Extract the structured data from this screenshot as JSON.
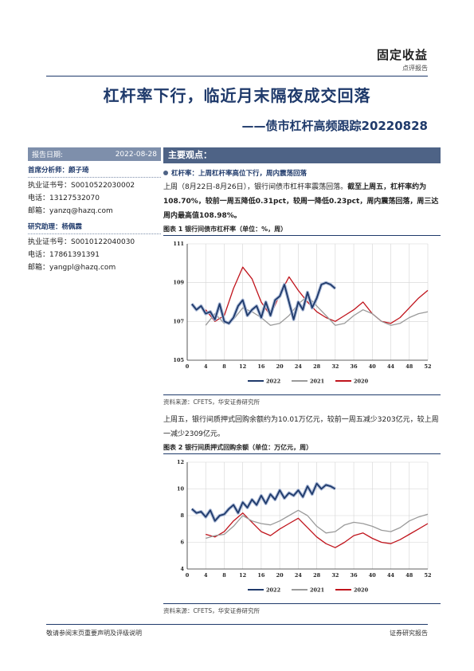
{
  "header": {
    "title": "固定收益",
    "subtitle": "点评报告"
  },
  "title": "杠杆率下行，临近月末隔夜成交回落",
  "subtitle": "——债市杠杆高频跟踪20220828",
  "sidebar": {
    "date_label": "报告日期:",
    "date_value": "2022-08-28",
    "analyst_role": "首席分析师：颜子琦",
    "analyst_cert": "执业证书号：S0010522030002",
    "analyst_phone": "电话：13127532070",
    "analyst_email": "邮箱：yanzq@hazq.com",
    "assistant_role": "研究助理：杨佩霖",
    "assistant_cert": "执业证书号：S0010122040030",
    "assistant_phone": "电话：17861391391",
    "assistant_email": "邮箱：yangpl@hazq.com"
  },
  "main": {
    "views_heading": "主要观点：",
    "bullet1": "杠杆率：上周杠杆率高位下行，周内震荡回落",
    "para1_plain": "上周（8月22日-8月26日），银行间债市杠杆率震荡回落。",
    "para1_bold": "截至上周五，杠杆率约为108.70%，较前一周五降低0.31pct，较周一降低0.23pct，周内震荡回落，周三达周内最高值108.98%。",
    "fig1_title": "图表 1  银行间债市杠杆率（单位：%，周）",
    "fig1_source": "资料来源：CFETS，华安证券研究所",
    "para2": "上周五，银行间质押式回购余额约为10.01万亿元，较前一周五减少3203亿元，较上周一减少2309亿元。",
    "fig2_title": "图表 2  银行间质押式回购余额（单位：万亿元，周）",
    "fig2_source": "资料来源：CFETS，华安证券研究所"
  },
  "footer": {
    "left": "敬请参阅末页重要声明及评级说明",
    "right": "证券研究报告"
  },
  "chart_data": [
    {
      "type": "line",
      "title": "",
      "xlabel": "",
      "ylabel": "",
      "xlim": [
        0,
        52
      ],
      "ylim": [
        105,
        111
      ],
      "xticks": [
        0,
        4,
        8,
        12,
        16,
        20,
        24,
        28,
        32,
        36,
        40,
        44,
        48,
        52
      ],
      "yticks": [
        105,
        107,
        109,
        111
      ],
      "grid": true,
      "legend": "bottom",
      "series": [
        {
          "name": "2022",
          "color": "#1f3a6b",
          "x": [
            1,
            2,
            3,
            4,
            5,
            6,
            7,
            8,
            9,
            10,
            11,
            12,
            13,
            14,
            15,
            16,
            17,
            18,
            19,
            20,
            21,
            22,
            23,
            24,
            25,
            26,
            27,
            28,
            29,
            30,
            31,
            32
          ],
          "y": [
            107.9,
            107.6,
            107.8,
            107.4,
            107.5,
            107.1,
            107.9,
            107.0,
            106.9,
            107.2,
            107.8,
            108.1,
            107.3,
            107.6,
            107.8,
            107.2,
            108.0,
            107.3,
            108.1,
            108.3,
            108.9,
            108.0,
            107.1,
            108.0,
            107.6,
            108.5,
            107.7,
            108.2,
            108.9,
            109.0,
            108.9,
            108.7
          ]
        },
        {
          "name": "2021",
          "color": "#9a9a9a",
          "x": [
            4,
            6,
            8,
            10,
            12,
            14,
            16,
            18,
            20,
            22,
            24,
            26,
            28,
            30,
            32,
            34,
            36,
            38,
            40,
            42,
            44,
            46,
            48,
            50,
            52
          ],
          "y": [
            106.8,
            107.4,
            106.9,
            107.1,
            107.7,
            107.5,
            107.2,
            106.8,
            106.9,
            107.3,
            107.9,
            108.3,
            107.8,
            107.3,
            106.8,
            106.9,
            107.3,
            107.6,
            107.4,
            107.0,
            106.8,
            106.9,
            107.2,
            107.4,
            107.5
          ]
        },
        {
          "name": "2020",
          "color": "#c0141c",
          "x": [
            4,
            6,
            8,
            10,
            12,
            14,
            16,
            18,
            20,
            22,
            24,
            26,
            28,
            30,
            32,
            34,
            36,
            38,
            40,
            42,
            44,
            46,
            48,
            50,
            52
          ],
          "y": [
            107.6,
            107.0,
            107.3,
            108.7,
            109.8,
            109.2,
            108.0,
            107.3,
            108.4,
            109.3,
            108.6,
            108.0,
            107.5,
            107.2,
            107.0,
            107.3,
            107.6,
            108.0,
            107.4,
            107.0,
            106.9,
            107.2,
            107.7,
            108.2,
            108.6
          ]
        }
      ]
    },
    {
      "type": "line",
      "title": "",
      "xlabel": "",
      "ylabel": "",
      "xlim": [
        0,
        52
      ],
      "ylim": [
        4,
        12
      ],
      "xticks": [
        0,
        4,
        8,
        12,
        16,
        20,
        24,
        28,
        32,
        36,
        40,
        44,
        48,
        52
      ],
      "yticks": [
        4,
        6,
        8,
        10,
        12
      ],
      "grid": true,
      "legend": "bottom",
      "series": [
        {
          "name": "2022",
          "color": "#1f3a6b",
          "x": [
            1,
            2,
            3,
            4,
            5,
            6,
            7,
            8,
            9,
            10,
            11,
            12,
            13,
            14,
            15,
            16,
            17,
            18,
            19,
            20,
            21,
            22,
            23,
            24,
            25,
            26,
            27,
            28,
            29,
            30,
            31,
            32
          ],
          "y": [
            8.5,
            8.2,
            8.3,
            7.9,
            8.4,
            7.6,
            8.0,
            8.1,
            8.5,
            8.8,
            8.2,
            9.0,
            8.6,
            9.2,
            8.8,
            9.5,
            8.9,
            9.6,
            9.2,
            9.9,
            9.3,
            9.7,
            9.5,
            9.9,
            9.4,
            10.2,
            9.6,
            10.4,
            10.0,
            10.3,
            10.2,
            10.0
          ]
        },
        {
          "name": "2021",
          "color": "#9a9a9a",
          "x": [
            4,
            6,
            8,
            10,
            12,
            14,
            16,
            18,
            20,
            22,
            24,
            26,
            28,
            30,
            32,
            34,
            36,
            38,
            40,
            42,
            44,
            46,
            48,
            50,
            52
          ],
          "y": [
            6.3,
            6.5,
            6.6,
            7.2,
            8.0,
            7.6,
            7.4,
            7.3,
            7.6,
            8.0,
            8.4,
            8.0,
            7.2,
            6.7,
            6.8,
            7.3,
            7.5,
            7.4,
            7.2,
            6.9,
            6.8,
            7.1,
            7.6,
            7.9,
            8.1
          ]
        },
        {
          "name": "2020",
          "color": "#c0141c",
          "x": [
            4,
            6,
            8,
            10,
            12,
            14,
            16,
            18,
            20,
            22,
            24,
            26,
            28,
            30,
            32,
            34,
            36,
            38,
            40,
            42,
            44,
            46,
            48,
            50,
            52
          ],
          "y": [
            6.6,
            6.4,
            6.8,
            7.6,
            8.2,
            7.5,
            6.8,
            6.5,
            7.0,
            7.4,
            7.8,
            7.1,
            6.4,
            5.9,
            5.6,
            6.0,
            6.5,
            6.7,
            6.3,
            6.0,
            5.9,
            6.2,
            6.6,
            7.0,
            7.4
          ]
        }
      ]
    }
  ]
}
